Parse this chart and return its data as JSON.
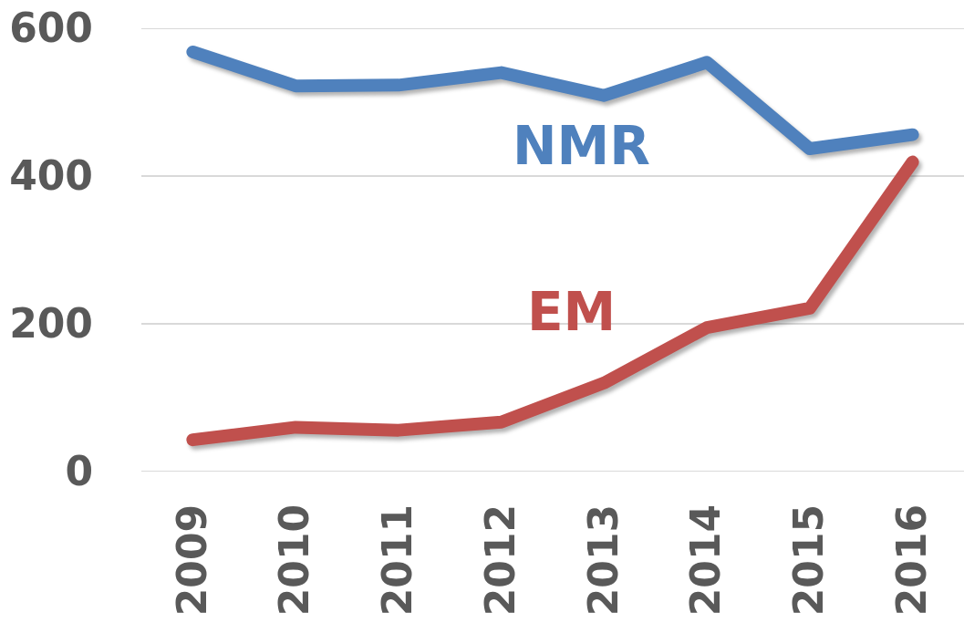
{
  "chart_data": {
    "type": "line",
    "categories": [
      "2009",
      "2010",
      "2011",
      "2012",
      "2013",
      "2014",
      "2015",
      "2016"
    ],
    "series": [
      {
        "name": "NMR",
        "color": "#4f81bd",
        "values": [
          568,
          522,
          523,
          540,
          509,
          554,
          437,
          456
        ]
      },
      {
        "name": "EM",
        "color": "#c0504d",
        "values": [
          43,
          60,
          56,
          67,
          120,
          195,
          221,
          419
        ]
      }
    ],
    "ylim": [
      0,
      600
    ],
    "yticks": [
      0,
      200,
      400,
      600
    ],
    "grid": "y",
    "legend": false
  }
}
